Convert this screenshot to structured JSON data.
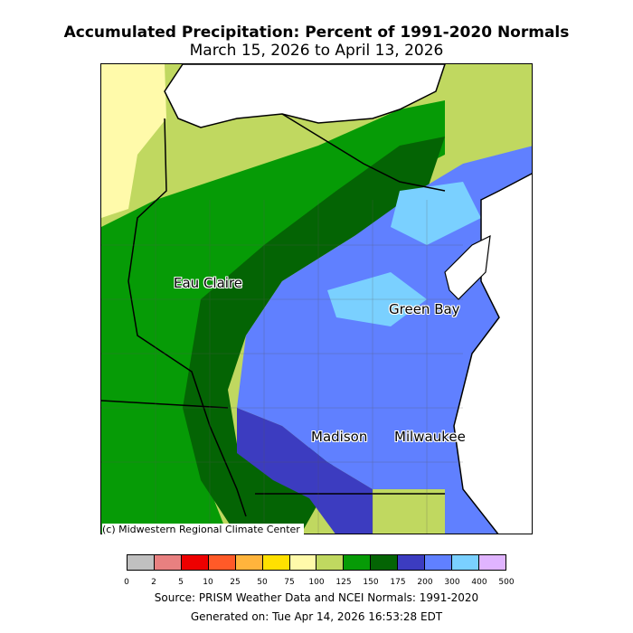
{
  "title": "Accumulated Precipitation: Percent of 1991-2020 Normals",
  "subtitle": "March 15, 2026 to April 13, 2026",
  "cities": [
    "Eau Claire",
    "Green Bay",
    "Madison",
    "Milwaukee"
  ],
  "credit": "(c) Midwestern Regional Climate Center",
  "legend": {
    "bins": [
      {
        "label": "0",
        "color": "#c0c0c0"
      },
      {
        "label": "2",
        "color": "#e88080"
      },
      {
        "label": "5",
        "color": "#ee0000"
      },
      {
        "label": "10",
        "color": "#ff5a28"
      },
      {
        "label": "25",
        "color": "#ffb43c"
      },
      {
        "label": "50",
        "color": "#ffe000"
      },
      {
        "label": "75",
        "color": "#fffaaa"
      },
      {
        "label": "100",
        "color": "#c0d860"
      },
      {
        "label": "125",
        "color": "#069b06"
      },
      {
        "label": "150",
        "color": "#046404"
      },
      {
        "label": "175",
        "color": "#3c3cc0"
      },
      {
        "label": "200",
        "color": "#6080ff"
      },
      {
        "label": "300",
        "color": "#7ad0ff"
      },
      {
        "label": "400",
        "color": "#e0b4ff"
      }
    ],
    "last_label": "500"
  },
  "source": "Source: PRISM Weather Data and NCEI Normals: 1991-2020",
  "generated": "Generated on: Tue Apr 14, 2026 16:53:28 EDT"
}
